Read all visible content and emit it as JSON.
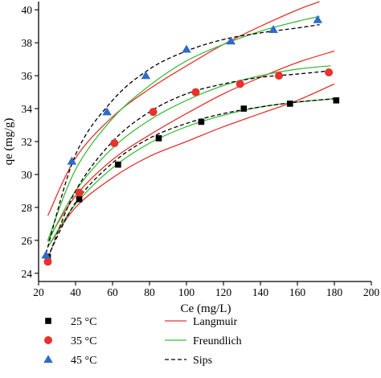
{
  "chart_data": {
    "type": "scatter",
    "title": "",
    "xlabel": "Ce (mg/L)",
    "ylabel": "qe (mg/g)",
    "xlim": [
      20,
      200
    ],
    "ylim": [
      23.5,
      40.5
    ],
    "xticks": [
      20,
      40,
      60,
      80,
      100,
      120,
      140,
      160,
      180,
      200
    ],
    "yticks": [
      24,
      26,
      28,
      30,
      32,
      34,
      36,
      38,
      40
    ],
    "grid": false,
    "legend_placement": "bottom",
    "series": [
      {
        "name": "25 °C",
        "marker": "square",
        "color": "#000000",
        "x": [
          25,
          42,
          63,
          85,
          108,
          131,
          156,
          181
        ],
        "y": [
          25.0,
          28.5,
          30.6,
          32.2,
          33.2,
          34.0,
          34.3,
          34.5
        ]
      },
      {
        "name": "35 °C",
        "marker": "circle",
        "color": "#e8322d",
        "x": [
          25,
          42,
          61,
          82,
          105,
          129,
          150,
          177
        ],
        "y": [
          24.7,
          28.9,
          31.9,
          33.8,
          35.0,
          35.5,
          36.0,
          36.2
        ]
      },
      {
        "name": "45 °C",
        "marker": "triangle",
        "color": "#2e6bc9",
        "x": [
          24,
          38,
          57,
          78,
          100,
          124,
          147,
          171
        ],
        "y": [
          25.1,
          30.8,
          33.8,
          36.0,
          37.6,
          38.1,
          38.8,
          39.4
        ]
      }
    ],
    "fit_lines": [
      {
        "name": "Langmuir",
        "style": "solid",
        "color": "#e8322d",
        "curves": [
          {
            "x": [
              25,
              40,
              60,
              80,
              100,
              120,
              140,
              160,
              180
            ],
            "y": [
              25.6,
              28.0,
              29.8,
              31.1,
              32.0,
              32.9,
              33.7,
              34.5,
              35.5
            ]
          },
          {
            "x": [
              25,
              40,
              60,
              80,
              100,
              120,
              140,
              160,
              180
            ],
            "y": [
              26.0,
              28.7,
              30.9,
              32.4,
              33.7,
              34.9,
              35.9,
              36.8,
              37.5
            ]
          },
          {
            "x": [
              25,
              40,
              60,
              80,
              100,
              120,
              140,
              160,
              172
            ],
            "y": [
              27.5,
              31.0,
              33.5,
              35.2,
              36.6,
              37.9,
              39.0,
              40.0,
              40.5
            ]
          }
        ]
      },
      {
        "name": "Freundlich",
        "style": "solid",
        "color": "#3cbc3c",
        "curves": [
          {
            "x": [
              25,
              40,
              60,
              80,
              100,
              120,
              140,
              160,
              180
            ],
            "y": [
              25.6,
              28.2,
              30.4,
              31.9,
              32.9,
              33.6,
              34.1,
              34.4,
              34.6
            ]
          },
          {
            "x": [
              25,
              40,
              60,
              80,
              100,
              120,
              140,
              160,
              178
            ],
            "y": [
              25.9,
              29.0,
              31.6,
              33.3,
              34.5,
              35.4,
              36.0,
              36.4,
              36.6
            ]
          },
          {
            "x": [
              25,
              40,
              60,
              80,
              100,
              120,
              140,
              160,
              172
            ],
            "y": [
              26.0,
              30.3,
              33.4,
              35.4,
              36.9,
              37.9,
              38.7,
              39.3,
              39.6
            ]
          }
        ]
      },
      {
        "name": "Sips",
        "style": "dashed",
        "color": "#000000",
        "curves": [
          {
            "x": [
              25,
              40,
              60,
              80,
              100,
              120,
              140,
              160,
              180
            ],
            "y": [
              25.0,
              28.3,
              30.7,
              32.2,
              33.1,
              33.7,
              34.1,
              34.4,
              34.6
            ]
          },
          {
            "x": [
              25,
              40,
              60,
              80,
              100,
              120,
              140,
              160,
              178
            ],
            "y": [
              24.9,
              29.0,
              32.0,
              33.8,
              34.9,
              35.5,
              35.9,
              36.1,
              36.3
            ]
          },
          {
            "x": [
              24,
              40,
              60,
              80,
              100,
              120,
              140,
              160,
              172
            ],
            "y": [
              25.2,
              31.2,
              34.5,
              36.4,
              37.5,
              38.2,
              38.6,
              38.9,
              39.1
            ]
          }
        ]
      }
    ]
  }
}
